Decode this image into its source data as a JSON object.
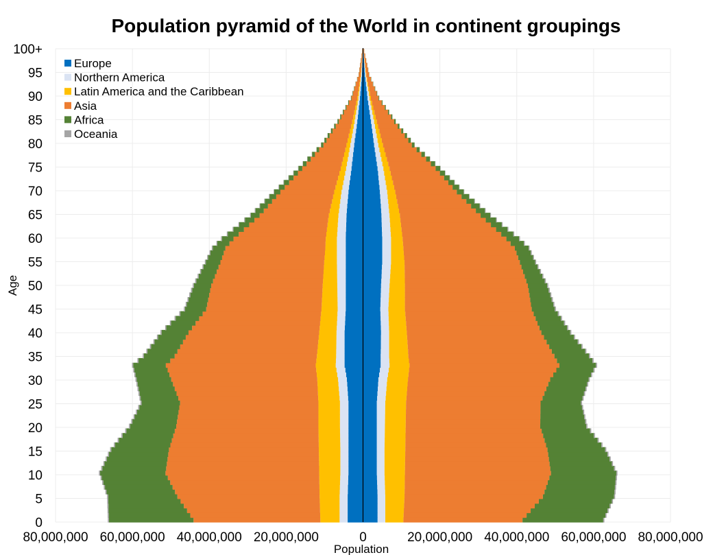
{
  "chart_data": {
    "type": "bar",
    "orientation": "horizontal-pyramid",
    "title": "Population pyramid of the World in continent groupings",
    "xlabel": "Population",
    "ylabel": "Age",
    "xlim": [
      -80000000,
      80000000
    ],
    "ylim": [
      0,
      100
    ],
    "x_ticks": [
      {
        "value": -80000000,
        "label": "80,000,000"
      },
      {
        "value": -60000000,
        "label": "60,000,000"
      },
      {
        "value": -40000000,
        "label": "40,000,000"
      },
      {
        "value": -20000000,
        "label": "20,000,000"
      },
      {
        "value": 0,
        "label": "0"
      },
      {
        "value": 20000000,
        "label": "20,000,000"
      },
      {
        "value": 40000000,
        "label": "40,000,000"
      },
      {
        "value": 60000000,
        "label": "60,000,000"
      },
      {
        "value": 80000000,
        "label": "80,000,000"
      }
    ],
    "y_ticks": [
      {
        "value": 0,
        "label": "0"
      },
      {
        "value": 5,
        "label": "5"
      },
      {
        "value": 10,
        "label": "10"
      },
      {
        "value": 15,
        "label": "15"
      },
      {
        "value": 20,
        "label": "20"
      },
      {
        "value": 25,
        "label": "25"
      },
      {
        "value": 30,
        "label": "30"
      },
      {
        "value": 35,
        "label": "35"
      },
      {
        "value": 40,
        "label": "40"
      },
      {
        "value": 45,
        "label": "45"
      },
      {
        "value": 50,
        "label": "50"
      },
      {
        "value": 55,
        "label": "55"
      },
      {
        "value": 60,
        "label": "60"
      },
      {
        "value": 65,
        "label": "65"
      },
      {
        "value": 70,
        "label": "70"
      },
      {
        "value": 75,
        "label": "75"
      },
      {
        "value": 80,
        "label": "80"
      },
      {
        "value": 85,
        "label": "85"
      },
      {
        "value": 90,
        "label": "90"
      },
      {
        "value": 95,
        "label": "95"
      },
      {
        "value": 100,
        "label": "100+"
      }
    ],
    "grid": true,
    "legend_position": "top-left",
    "stacking_order_from_center": [
      "Europe",
      "Northern America",
      "Latin America and the Caribbean",
      "Asia",
      "Africa",
      "Oceania"
    ],
    "anchor_ages": [
      0,
      5,
      10,
      15,
      20,
      25,
      30,
      33,
      35,
      40,
      45,
      50,
      55,
      58,
      60,
      65,
      70,
      75,
      80,
      85,
      90,
      95,
      100
    ],
    "series": [
      {
        "name": "Europe",
        "color": "#0070c0",
        "left": [
          4000000,
          4000000,
          3800000,
          3800000,
          3800000,
          3800000,
          4200000,
          4800000,
          4800000,
          4800000,
          4500000,
          4500000,
          4500000,
          4500000,
          4500000,
          4300000,
          3800000,
          3000000,
          2300000,
          1500000,
          800000,
          300000,
          50000
        ],
        "right": [
          3800000,
          3800000,
          3600000,
          3600000,
          3600000,
          3600000,
          4000000,
          4600000,
          4600000,
          4700000,
          4500000,
          4700000,
          5000000,
          5000000,
          5000000,
          4800000,
          4400000,
          3800000,
          2900000,
          2100000,
          1200000,
          500000,
          100000
        ]
      },
      {
        "name": "Northern America",
        "color": "#dae3f3",
        "left": [
          2100000,
          2100000,
          2100000,
          2100000,
          2200000,
          2200000,
          2300000,
          2300000,
          2200000,
          2100000,
          2100000,
          2200000,
          2300000,
          2300000,
          2300000,
          2100000,
          1800000,
          1400000,
          1000000,
          700000,
          400000,
          200000,
          50000
        ],
        "right": [
          2000000,
          2000000,
          2000000,
          2000000,
          2100000,
          2200000,
          2300000,
          2300000,
          2200000,
          2100000,
          2100000,
          2200000,
          2300000,
          2300000,
          2300000,
          2100000,
          1900000,
          1500000,
          1100000,
          800000,
          500000,
          250000,
          50000
        ]
      },
      {
        "name": "Latin America and the Caribbean",
        "color": "#ffc000",
        "left": [
          5000000,
          5200000,
          5500000,
          5600000,
          5600000,
          5600000,
          5400000,
          5200000,
          5000000,
          4500000,
          4200000,
          3800000,
          3300000,
          3000000,
          2900000,
          2500000,
          1900000,
          1400000,
          1000000,
          600000,
          300000,
          100000,
          20000
        ],
        "right": [
          4700000,
          5000000,
          5300000,
          5400000,
          5400000,
          5400000,
          5400000,
          5200000,
          5000000,
          4600000,
          4300000,
          4000000,
          3500000,
          3200000,
          3000000,
          2700000,
          2100000,
          1600000,
          1200000,
          700000,
          350000,
          120000,
          20000
        ]
      },
      {
        "name": "Asia",
        "color": "#ed7d31",
        "left": [
          33000000,
          37000000,
          40000000,
          39000000,
          37000000,
          36000000,
          38000000,
          39000000,
          37000000,
          34000000,
          30000000,
          29000000,
          27000000,
          26000000,
          24000000,
          18000000,
          14000000,
          10000000,
          6000000,
          3500000,
          1500000,
          500000,
          100000
        ],
        "right": [
          31000000,
          36000000,
          38000000,
          37000000,
          35000000,
          35000000,
          37000000,
          39000000,
          38000000,
          35000000,
          33000000,
          32000000,
          30000000,
          29000000,
          27000000,
          21000000,
          16000000,
          12000000,
          7500000,
          4500000,
          2000000,
          700000,
          150000
        ]
      },
      {
        "name": "Africa",
        "color": "#548235",
        "left": [
          22000000,
          18000000,
          17000000,
          15000000,
          12000000,
          10000000,
          9000000,
          8500000,
          8000000,
          7000000,
          5500000,
          4500000,
          3800000,
          3300000,
          3000000,
          2300000,
          1600000,
          1000000,
          600000,
          350000,
          150000,
          50000,
          10000
        ],
        "right": [
          21000000,
          18500000,
          17000000,
          15000000,
          12000000,
          10500000,
          10000000,
          9500000,
          9000000,
          7500000,
          6000000,
          5000000,
          4000000,
          3600000,
          3300000,
          2500000,
          1800000,
          1200000,
          700000,
          400000,
          170000,
          60000,
          10000
        ]
      },
      {
        "name": "Oceania",
        "color": "#a5a5a5",
        "left": [
          300000,
          300000,
          300000,
          300000,
          300000,
          300000,
          300000,
          300000,
          300000,
          300000,
          300000,
          300000,
          250000,
          250000,
          250000,
          200000,
          150000,
          100000,
          60000,
          30000,
          15000,
          5000,
          1000
        ],
        "right": [
          300000,
          300000,
          300000,
          300000,
          300000,
          300000,
          300000,
          300000,
          300000,
          300000,
          300000,
          300000,
          250000,
          250000,
          250000,
          200000,
          150000,
          100000,
          60000,
          30000,
          15000,
          5000,
          1000
        ]
      }
    ]
  }
}
